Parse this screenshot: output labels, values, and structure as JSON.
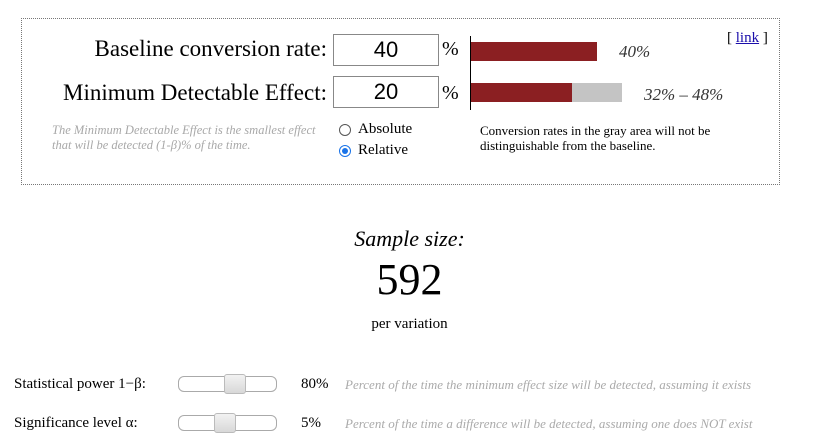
{
  "calculator": {
    "baseline": {
      "label": "Baseline conversion rate:",
      "value": "40",
      "unit": "%",
      "bar_value_text": "40%",
      "bar_fraction": 0.4
    },
    "mde": {
      "label": "Minimum Detectable Effect:",
      "value": "20",
      "unit": "%",
      "range_text": "32% – 48%",
      "red_fraction": 0.32,
      "gray_fraction": 0.16
    },
    "link_text": "link",
    "link_open": "[",
    "link_close": "]",
    "mde_hint": "The Minimum Detectable Effect is the smallest effect that will be detected (1-β)% of the time.",
    "mode_options": [
      {
        "label": "Absolute",
        "selected": false
      },
      {
        "label": "Relative",
        "selected": true
      }
    ],
    "gray_area_note": "Conversion rates in the gray area will not be distinguishable from the baseline."
  },
  "result": {
    "title": "Sample size:",
    "value": "592",
    "subtitle": "per variation"
  },
  "settings": {
    "power": {
      "label": "Statistical power 1−β:",
      "value_text": "80%",
      "description": "Percent of the time the minimum effect size will be detected, assuming it exists",
      "slider_position": 0.58
    },
    "significance": {
      "label": "Significance level α:",
      "value_text": "5%",
      "description": "Percent of the time a difference will be detected, assuming one does NOT exist",
      "slider_position": 0.46
    }
  },
  "colors": {
    "bar_red": "#8b1f22",
    "bar_gray": "#c4c4c4",
    "hint_text": "#a8a8a8",
    "radio_accent": "#1a73e8"
  }
}
